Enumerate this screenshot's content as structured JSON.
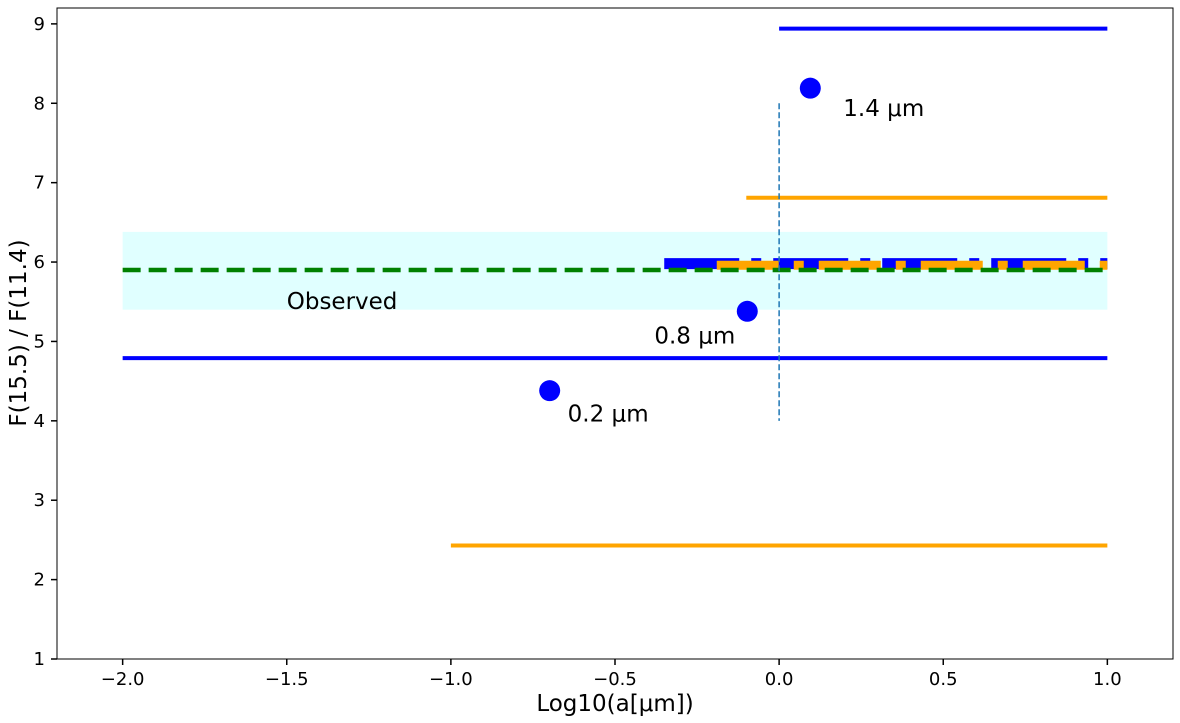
{
  "chart_data": {
    "type": "scatter",
    "title": "",
    "xlabel": "Log10(a[μm])",
    "ylabel": "F(15.5) / F(11.4)",
    "xlim": [
      -2.2,
      1.2
    ],
    "ylim": [
      1,
      9.2
    ],
    "xticks": [
      -2.0,
      -1.5,
      -1.0,
      -0.5,
      0.0,
      0.5,
      1.0
    ],
    "xtick_labels": [
      "−2.0",
      "−1.5",
      "−1.0",
      "−0.5",
      "0.0",
      "0.5",
      "1.0"
    ],
    "yticks": [
      1,
      2,
      3,
      4,
      5,
      6,
      7,
      8,
      9
    ],
    "ytick_labels": [
      "1",
      "2",
      "3",
      "4",
      "5",
      "6",
      "7",
      "8",
      "9"
    ],
    "grid": false,
    "observed_band": {
      "y_min": 5.4,
      "y_max": 6.38,
      "x_min": -2.0,
      "x_max": 1.0,
      "color": "#e0ffff"
    },
    "observed_line": {
      "y": 5.9,
      "x_min": -2.0,
      "x_max": 1.0,
      "color": "#008000",
      "style": "dashed"
    },
    "points": [
      {
        "x": -0.699,
        "y": 4.38,
        "label": "0.2 μm",
        "color": "#0000ff"
      },
      {
        "x": -0.097,
        "y": 5.38,
        "label": "0.8 μm",
        "color": "#0000ff"
      },
      {
        "x": 0.095,
        "y": 8.19,
        "label": "1.4 μm",
        "color": "#0000ff"
      }
    ],
    "horizontal_segments": [
      {
        "x_min": 0.0,
        "x_max": 1.0,
        "y": 8.94,
        "color": "#0000ff",
        "style": "solid"
      },
      {
        "x_min": -2.0,
        "x_max": 1.0,
        "y": 4.79,
        "color": "#0000ff",
        "style": "solid"
      },
      {
        "x_min": -0.1,
        "x_max": 1.0,
        "y": 6.81,
        "color": "#ffa500",
        "style": "solid"
      },
      {
        "x_min": -1.0,
        "x_max": 1.0,
        "y": 2.43,
        "color": "#ffa500",
        "style": "solid"
      },
      {
        "x_min": -0.35,
        "x_max": 1.0,
        "y": 5.98,
        "color": "#0000ff",
        "style": "dashdot-thick"
      },
      {
        "x_min": -0.19,
        "x_max": 1.0,
        "y": 5.96,
        "color": "#ffa500",
        "style": "dashdot-thick"
      }
    ],
    "vertical_line": {
      "x": 0.0,
      "y_min": 4.0,
      "y_max": 8.0,
      "color": "#1f77b4",
      "style": "dashed"
    },
    "annotations": [
      {
        "text": "Observed",
        "x": -1.5,
        "y": 5.51
      }
    ]
  }
}
